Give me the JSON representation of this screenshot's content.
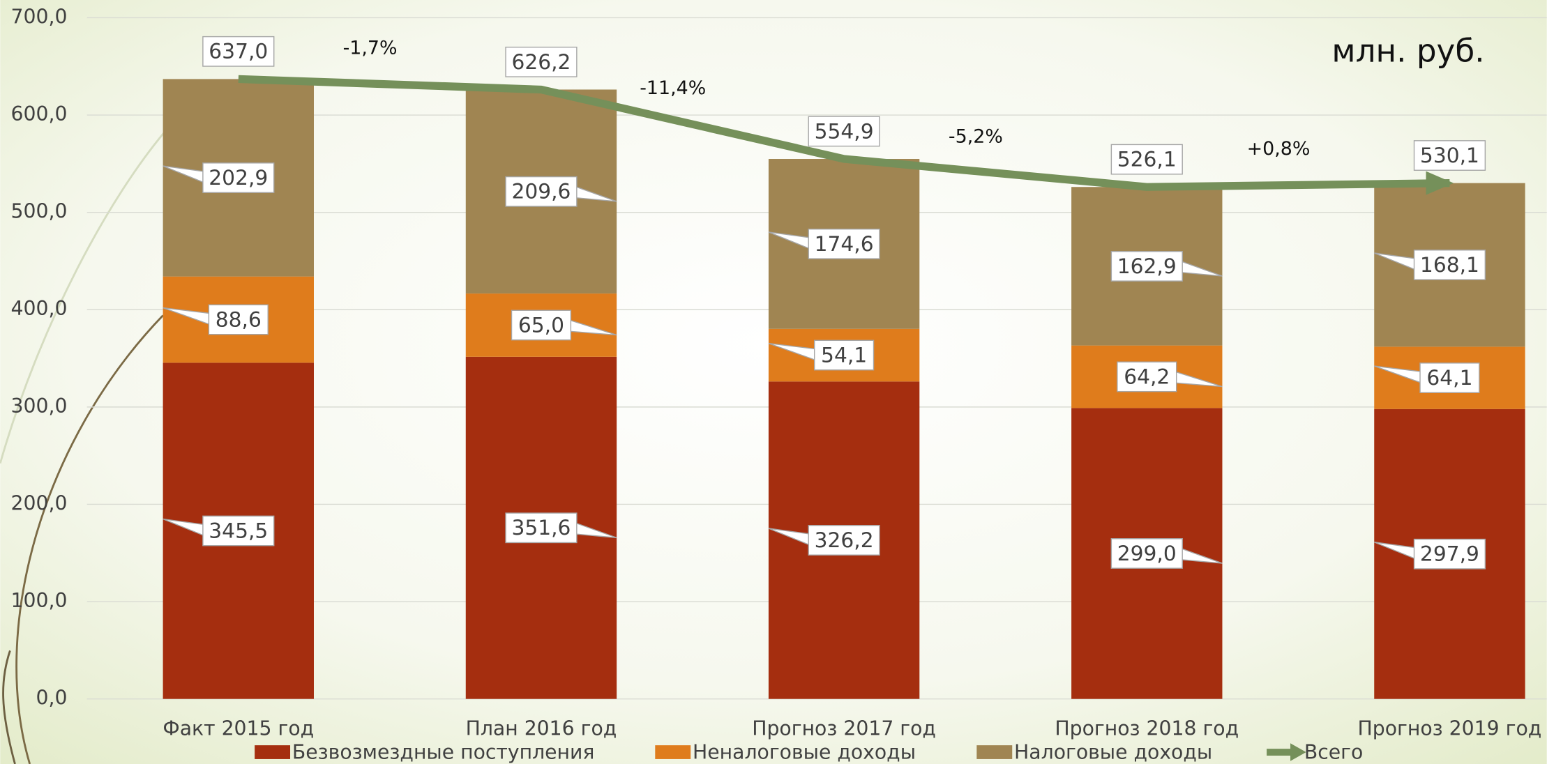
{
  "chart_data": {
    "type": "stacked_bar",
    "unit_label": "млн. руб.",
    "categories": [
      "Факт 2015 год",
      "План 2016 год",
      "Прогноз 2017 год",
      "Прогноз 2018 год",
      "Прогноз 2019 год"
    ],
    "series": [
      {
        "name": "Безвозмездные поступления",
        "color": "#a52e0f",
        "values": [
          345.5,
          351.6,
          326.2,
          299.0,
          297.9
        ],
        "value_labels": [
          "345,5",
          "351,6",
          "326,2",
          "299,0",
          "297,9"
        ]
      },
      {
        "name": "Неналоговые доходы",
        "color": "#df7c1c",
        "values": [
          88.6,
          65.0,
          54.1,
          64.2,
          64.1
        ],
        "value_labels": [
          "88,6",
          "65,0",
          "54,1",
          "64,2",
          "64,1"
        ]
      },
      {
        "name": "Налоговые доходы",
        "color": "#a08552",
        "values": [
          202.9,
          209.6,
          174.6,
          162.9,
          168.1
        ],
        "value_labels": [
          "202,9",
          "209,6",
          "174,6",
          "162,9",
          "168,1"
        ]
      }
    ],
    "total": {
      "name": "Всего",
      "color": "#75905a",
      "values": [
        637.0,
        626.2,
        554.9,
        526.1,
        530.1
      ],
      "value_labels": [
        "637,0",
        "626,2",
        "554,9",
        "526,1",
        "530,1"
      ]
    },
    "change_labels": [
      "-1,7%",
      "-11,4%",
      "-5,2%",
      "+0,8%"
    ],
    "ylim": [
      0,
      700
    ],
    "yticks": [
      {
        "value": 0,
        "label": "0,0"
      },
      {
        "value": 100,
        "label": "100,0"
      },
      {
        "value": 200,
        "label": "200,0"
      },
      {
        "value": 300,
        "label": "300,0"
      },
      {
        "value": 400,
        "label": "400,0"
      },
      {
        "value": 500,
        "label": "500,0"
      },
      {
        "value": 600,
        "label": "600,0"
      },
      {
        "value": 700,
        "label": "700,0"
      }
    ],
    "grid": true,
    "legend": "bottom"
  }
}
